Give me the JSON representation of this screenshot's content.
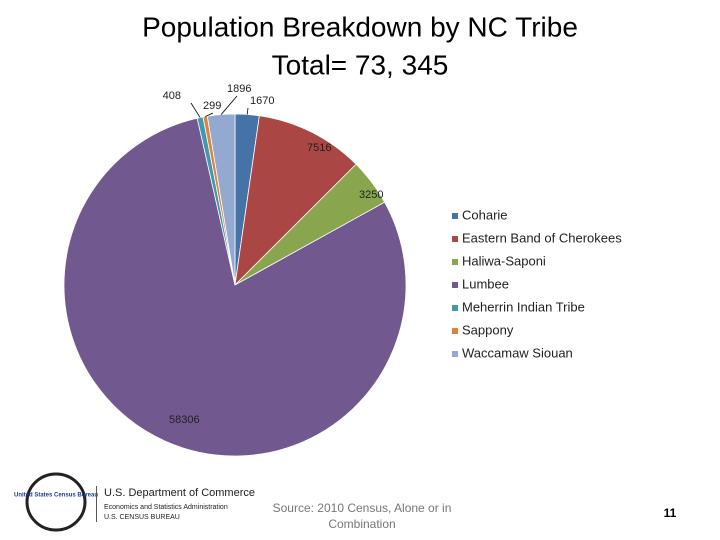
{
  "chart_data": {
    "type": "pie",
    "title": "Population Breakdown by NC Tribe",
    "subtitle": "Total= 73, 345",
    "categories": [
      "Coharie",
      "Eastern Band of Cherokees",
      "Haliwa-Saponi",
      "Lumbee",
      "Meherrin Indian Tribe",
      "Sappony",
      "Waccamaw Siouan"
    ],
    "values": [
      1670,
      7516,
      3250,
      58306,
      408,
      299,
      1896
    ],
    "colors": [
      "#4572a7",
      "#aa4643",
      "#89a54e",
      "#71588f",
      "#4198af",
      "#db843d",
      "#93a9cf"
    ],
    "legend": "right"
  },
  "footer": {
    "source": "Source: 2010 Census, Alone or in Combination",
    "page_number": "11",
    "logo_text": "United States Census Bureau",
    "department": "U.S. Department of Commerce",
    "administration": "Economics and Statistics Administration",
    "bureau": "U.S. CENSUS BUREAU"
  }
}
